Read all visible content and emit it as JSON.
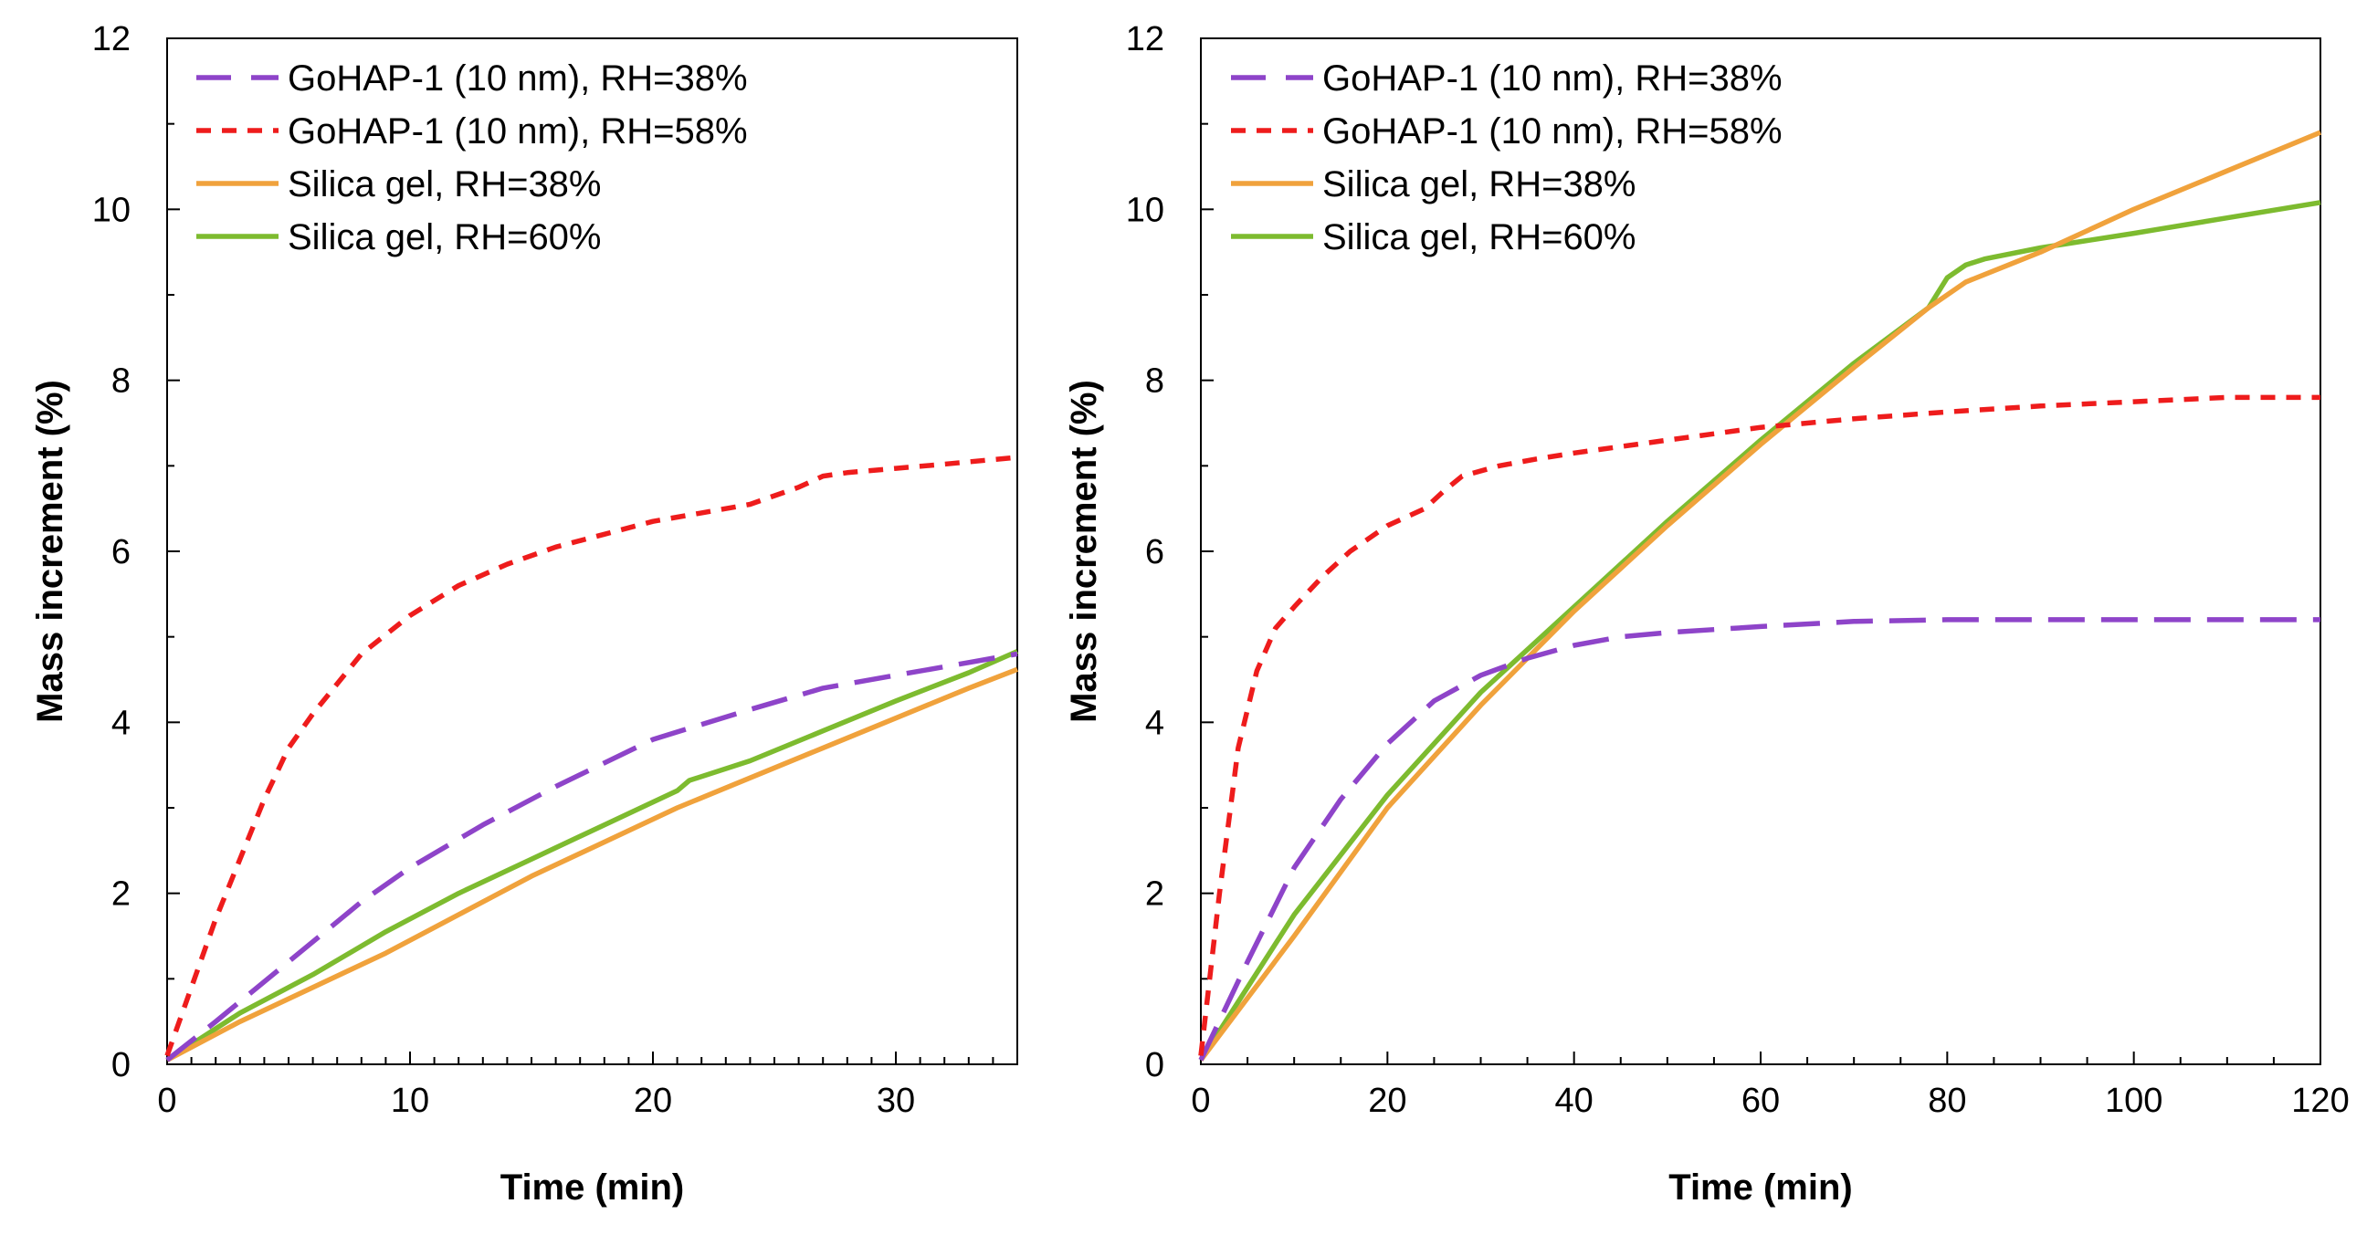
{
  "colors": {
    "gohap_38": "#8E44C9",
    "gohap_58": "#EE1C1C",
    "silica_38": "#F0A23C",
    "silica_60": "#7DBB2F",
    "axis": "#000000",
    "background": "#ffffff"
  },
  "chart_data": [
    {
      "type": "line",
      "title": "",
      "xlabel": "Time (min)",
      "ylabel": "Mass increment (%)",
      "xlim": [
        0,
        35
      ],
      "ylim": [
        0,
        12
      ],
      "xticks": [
        "0",
        "10",
        "20",
        "30"
      ],
      "yticks": [
        "0",
        "2",
        "4",
        "6",
        "8",
        "10",
        "12"
      ],
      "legend_position": "top-left",
      "series": [
        {
          "name": "GoHAP-1 (10 nm), RH=38%",
          "style": "long-dash",
          "color_key": "gohap_38",
          "x": [
            0,
            2,
            5,
            8,
            10,
            13,
            16,
            20,
            24,
            27,
            30,
            33,
            35
          ],
          "y": [
            0.05,
            0.5,
            1.2,
            1.9,
            2.3,
            2.8,
            3.25,
            3.8,
            4.15,
            4.4,
            4.55,
            4.7,
            4.8
          ]
        },
        {
          "name": "GoHAP-1 (10 nm), RH=58%",
          "style": "short-dash",
          "color_key": "gohap_58",
          "x": [
            0,
            1,
            2,
            3,
            4,
            5,
            6,
            8,
            10,
            12,
            14,
            16,
            18,
            20,
            22,
            24,
            25,
            26,
            27,
            28,
            30,
            32,
            35
          ],
          "y": [
            0.1,
            0.9,
            1.7,
            2.4,
            3.1,
            3.7,
            4.1,
            4.8,
            5.25,
            5.6,
            5.85,
            6.05,
            6.2,
            6.35,
            6.45,
            6.55,
            6.65,
            6.75,
            6.88,
            6.92,
            6.97,
            7.02,
            7.1
          ]
        },
        {
          "name": "Silica gel, RH=38%",
          "style": "solid",
          "color_key": "silica_38",
          "x": [
            0,
            3,
            6,
            9,
            12,
            15,
            18,
            21,
            24,
            27,
            30,
            33,
            35
          ],
          "y": [
            0.05,
            0.5,
            0.9,
            1.3,
            1.75,
            2.2,
            2.6,
            3.0,
            3.35,
            3.7,
            4.05,
            4.4,
            4.62
          ]
        },
        {
          "name": "Silica gel, RH=60%",
          "style": "solid",
          "color_key": "silica_60",
          "x": [
            0,
            3,
            6,
            9,
            12,
            15,
            18,
            21,
            21.5,
            24,
            27,
            30,
            33,
            35
          ],
          "y": [
            0.05,
            0.6,
            1.05,
            1.55,
            2.0,
            2.4,
            2.8,
            3.2,
            3.32,
            3.55,
            3.9,
            4.25,
            4.58,
            4.83
          ]
        }
      ]
    },
    {
      "type": "line",
      "title": "",
      "xlabel": "Time (min)",
      "ylabel": "Mass increment (%)",
      "xlim": [
        0,
        120
      ],
      "ylim": [
        0,
        12
      ],
      "xticks": [
        "0",
        "20",
        "40",
        "60",
        "80",
        "100",
        "120"
      ],
      "yticks": [
        "0",
        "2",
        "4",
        "6",
        "8",
        "10",
        "12"
      ],
      "legend_position": "top-left",
      "series": [
        {
          "name": "GoHAP-1 (10 nm), RH=38%",
          "style": "long-dash",
          "color_key": "gohap_38",
          "x": [
            0,
            5,
            10,
            15,
            20,
            25,
            30,
            35,
            40,
            45,
            50,
            60,
            70,
            80,
            90,
            100,
            110,
            120
          ],
          "y": [
            0.05,
            1.2,
            2.3,
            3.1,
            3.75,
            4.25,
            4.55,
            4.75,
            4.9,
            5.0,
            5.05,
            5.12,
            5.18,
            5.2,
            5.2,
            5.2,
            5.2,
            5.2
          ]
        },
        {
          "name": "GoHAP-1 (10 nm), RH=58%",
          "style": "short-dash",
          "color_key": "gohap_58",
          "x": [
            0,
            2,
            4,
            6,
            8,
            10,
            13,
            16,
            20,
            24,
            26,
            28,
            32,
            36,
            40,
            50,
            60,
            70,
            80,
            90,
            100,
            110,
            120
          ],
          "y": [
            0.1,
            2.0,
            3.7,
            4.6,
            5.1,
            5.35,
            5.7,
            6.0,
            6.3,
            6.5,
            6.7,
            6.88,
            7.0,
            7.08,
            7.15,
            7.3,
            7.45,
            7.55,
            7.63,
            7.7,
            7.75,
            7.8,
            7.8
          ]
        },
        {
          "name": "Silica gel, RH=38%",
          "style": "solid",
          "color_key": "silica_38",
          "x": [
            0,
            10,
            20,
            30,
            40,
            50,
            60,
            70,
            78,
            82,
            90,
            100,
            110,
            120
          ],
          "y": [
            0.05,
            1.5,
            3.0,
            4.2,
            5.3,
            6.3,
            7.25,
            8.15,
            8.85,
            9.15,
            9.5,
            10.0,
            10.45,
            10.9
          ]
        },
        {
          "name": "Silica gel, RH=60%",
          "style": "solid",
          "color_key": "silica_60",
          "x": [
            0,
            10,
            20,
            30,
            40,
            50,
            60,
            70,
            78,
            80,
            82,
            84,
            90,
            100,
            110,
            120
          ],
          "y": [
            0.05,
            1.75,
            3.15,
            4.35,
            5.35,
            6.35,
            7.3,
            8.2,
            8.85,
            9.2,
            9.35,
            9.42,
            9.55,
            9.72,
            9.9,
            10.08
          ]
        }
      ]
    }
  ]
}
